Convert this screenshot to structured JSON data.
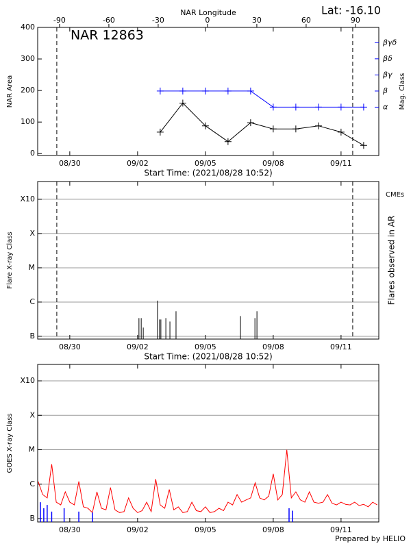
{
  "lat_label": "Lat: -16.10",
  "footer": "Prepared by HELIO",
  "chart_data": [
    {
      "type": "line",
      "title": "NAR 12863",
      "xlabel": "Start Time: (2021/08/28 10:52)",
      "x2label": "NAR Longitude",
      "ylabel": "NAR Area",
      "y2label": "Mag. Class",
      "x": [
        6,
        7,
        8,
        9,
        10,
        11,
        12,
        13,
        14,
        15
      ],
      "xlim": [
        0.58,
        15.67
      ],
      "xticks": [
        {
          "value": 2,
          "label": "08/30"
        },
        {
          "value": 5,
          "label": "09/02"
        },
        {
          "value": 8,
          "label": "09/05"
        },
        {
          "value": 11,
          "label": "09/08"
        },
        {
          "value": 14,
          "label": "09/11"
        }
      ],
      "x2lim": [
        -103.3,
        104.2
      ],
      "x2ticks": [
        -90,
        -60,
        -30,
        0,
        30,
        60,
        90
      ],
      "ylim": [
        -6,
        400
      ],
      "yticks": [
        0,
        100,
        200,
        300,
        400
      ],
      "y2lim": [
        0,
        7.95
      ],
      "y2ticks": [
        {
          "value": 3,
          "label": "α"
        },
        {
          "value": 4,
          "label": "β"
        },
        {
          "value": 5,
          "label": "βγ"
        },
        {
          "value": 6,
          "label": "βδ"
        },
        {
          "value": 7,
          "label": "βγδ"
        }
      ],
      "series": [
        {
          "color": "#000000",
          "marker": "+",
          "values": [
            68,
            160,
            88,
            38,
            98,
            78,
            78,
            88,
            68,
            26
          ]
        },
        {
          "color": "#0000ff",
          "marker": "+",
          "axis": "y2",
          "values": [
            4,
            4,
            4,
            4,
            4,
            3,
            3,
            3,
            3,
            3
          ]
        }
      ]
    },
    {
      "type": "bar",
      "xlabel": "Start Time: (2021/08/28 10:52)",
      "ylabel": "Flare X-ray Class",
      "y2label": "Flares observed in AR",
      "annotation": "CMEs",
      "annotation_color": "#ff0000",
      "color": "#000000",
      "x": [
        5.06,
        5.16,
        5.25,
        5.88,
        5.97,
        6.03,
        6.25,
        6.43,
        6.7,
        9.55,
        10.19,
        10.28
      ],
      "values": [
        3.4e-07,
        3.4e-07,
        1.8e-07,
        1.1e-06,
        3.1e-07,
        3.1e-07,
        3.4e-07,
        2.7e-07,
        5.4e-07,
        3.9e-07,
        3.4e-07,
        5.4e-07
      ],
      "xlim": [
        0.58,
        15.67
      ],
      "xticks": [
        {
          "value": 2,
          "label": "08/30"
        },
        {
          "value": 5,
          "label": "09/02"
        },
        {
          "value": 8,
          "label": "09/05"
        },
        {
          "value": 11,
          "label": "09/08"
        },
        {
          "value": 14,
          "label": "09/11"
        }
      ],
      "log": true,
      "grid": true,
      "ylim": [
        8.3e-08,
        0.0033
      ],
      "yticks": [
        {
          "value": 1e-07,
          "label": "B"
        },
        {
          "value": 1e-06,
          "label": "C"
        },
        {
          "value": 1e-05,
          "label": "M"
        },
        {
          "value": 0.0001,
          "label": "X"
        },
        {
          "value": 0.001,
          "label": "X10"
        }
      ]
    },
    {
      "type": "line",
      "ylabel": "GOES X-ray Class",
      "xlim": [
        0.58,
        15.67
      ],
      "xticks": [
        {
          "value": 2,
          "label": "08/30"
        },
        {
          "value": 5,
          "label": "09/02"
        },
        {
          "value": 8,
          "label": "09/05"
        },
        {
          "value": 11,
          "label": "09/08"
        },
        {
          "value": 14,
          "label": "09/11"
        }
      ],
      "log": true,
      "grid": true,
      "ylim": [
        8e-08,
        0.003
      ],
      "yticks": [
        {
          "value": 1e-07,
          "label": "B"
        },
        {
          "value": 1e-06,
          "label": "C"
        },
        {
          "value": 1e-05,
          "label": "M"
        },
        {
          "value": 0.0001,
          "label": "X"
        },
        {
          "value": 0.001,
          "label": "X10"
        }
      ],
      "series": [
        {
          "color": "#ff0000",
          "x": [
            0.6,
            0.8,
            1.0,
            1.2,
            1.4,
            1.6,
            1.8,
            2.0,
            2.2,
            2.4,
            2.6,
            2.8,
            3.0,
            3.2,
            3.4,
            3.6,
            3.8,
            4.0,
            4.2,
            4.4,
            4.6,
            4.8,
            5.0,
            5.2,
            5.4,
            5.6,
            5.8,
            6.0,
            6.2,
            6.4,
            6.6,
            6.8,
            7.0,
            7.2,
            7.4,
            7.6,
            7.8,
            8.0,
            8.2,
            8.4,
            8.6,
            8.8,
            9.0,
            9.2,
            9.4,
            9.6,
            9.8,
            10.0,
            10.2,
            10.4,
            10.6,
            10.8,
            11.0,
            11.2,
            11.4,
            11.6,
            11.8,
            12.0,
            12.2,
            12.4,
            12.6,
            12.8,
            13.0,
            13.2,
            13.4,
            13.6,
            13.8,
            14.0,
            14.2,
            14.4,
            14.6,
            14.8,
            15.0,
            15.2,
            15.4,
            15.6
          ],
          "values": [
            1.2e-06,
            5e-07,
            4e-07,
            3.8e-06,
            3e-07,
            2.5e-07,
            6e-07,
            3e-07,
            2.5e-07,
            1.2e-06,
            2.2e-07,
            2e-07,
            1.5e-07,
            6e-07,
            2e-07,
            1.8e-07,
            8e-07,
            1.8e-07,
            1.5e-07,
            1.6e-07,
            4e-07,
            2e-07,
            1.5e-07,
            1.7e-07,
            3e-07,
            1.6e-07,
            1.4e-06,
            2.5e-07,
            2e-07,
            7e-07,
            1.8e-07,
            2.2e-07,
            1.5e-07,
            1.6e-07,
            3e-07,
            1.7e-07,
            1.6e-07,
            2.2e-07,
            1.5e-07,
            1.6e-07,
            2e-07,
            1.7e-07,
            3e-07,
            2.5e-07,
            5e-07,
            3e-07,
            3.5e-07,
            4e-07,
            1.1e-06,
            4e-07,
            3.5e-07,
            4.5e-07,
            2e-06,
            3.5e-07,
            5e-07,
            1e-05,
            4e-07,
            6e-07,
            3.5e-07,
            3e-07,
            6e-07,
            3e-07,
            2.8e-07,
            3e-07,
            5e-07,
            2.8e-07,
            2.5e-07,
            3e-07,
            2.6e-07,
            2.5e-07,
            3e-07,
            2.4e-07,
            2.6e-07,
            2.2e-07,
            3e-07,
            2.5e-07
          ]
        },
        {
          "color": "#0000ff",
          "style": "spikes",
          "x": [
            0.7,
            0.85,
            1.0,
            1.2,
            1.75,
            2.4,
            3.0,
            11.7,
            11.85
          ],
          "values": [
            3e-07,
            2e-07,
            2.5e-07,
            1.6e-07,
            2e-07,
            1.6e-07,
            1.5e-07,
            2e-07,
            1.7e-07
          ]
        }
      ]
    }
  ]
}
